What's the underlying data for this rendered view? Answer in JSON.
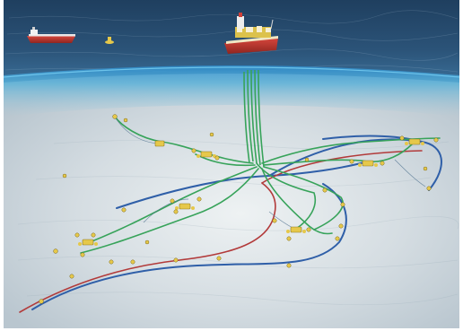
{
  "scene": {
    "kind": "subsea-field-illustration",
    "colors": {
      "sea_surface": "#2a4f72",
      "waterline": "#3b9fd4",
      "seabed": "#d7dfe4",
      "riser_green": "#37a35a",
      "flowline_blue": "#2f5fa8",
      "flowline_red": "#b23a3a",
      "vessel_hull": "#c63a32",
      "equipment_yellow": "#e6c84a"
    },
    "icons": [
      "fpso-vessel",
      "tanker-ship",
      "surface-buoy",
      "subsea-manifold",
      "wellhead"
    ]
  }
}
